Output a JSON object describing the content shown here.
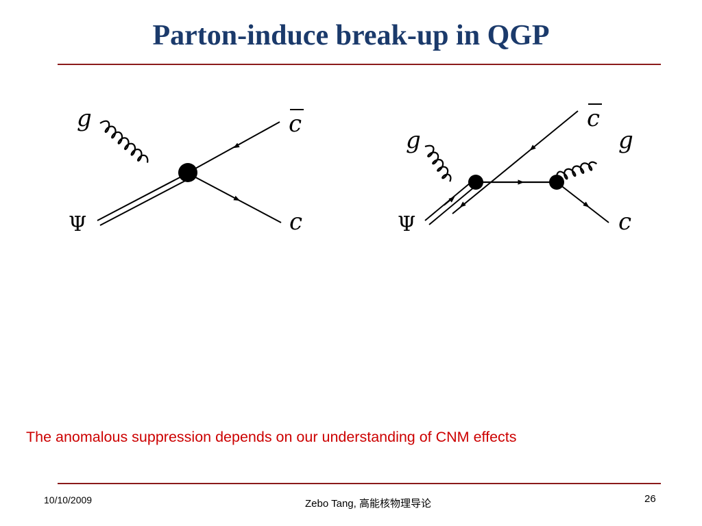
{
  "slide": {
    "title": "Parton-induce break-up in QGP",
    "caption": "The anomalous suppression depends on our understanding of CNM effects"
  },
  "diagram_left": {
    "label_gluon": "g",
    "label_charm_bar": "c",
    "label_psi": "Ψ",
    "label_charm": "c"
  },
  "diagram_right": {
    "label_gluon_in": "g",
    "label_charm_bar": "c",
    "label_gluon_out": "g",
    "label_psi": "Ψ",
    "label_charm": "c"
  },
  "footer": {
    "date": "10/10/2009",
    "author": "Zebo Tang, 高能核物理导论",
    "page_number": "26"
  },
  "colors": {
    "title": "#1b3a6b",
    "rule": "#8b1a1a",
    "caption": "#cc0000"
  }
}
